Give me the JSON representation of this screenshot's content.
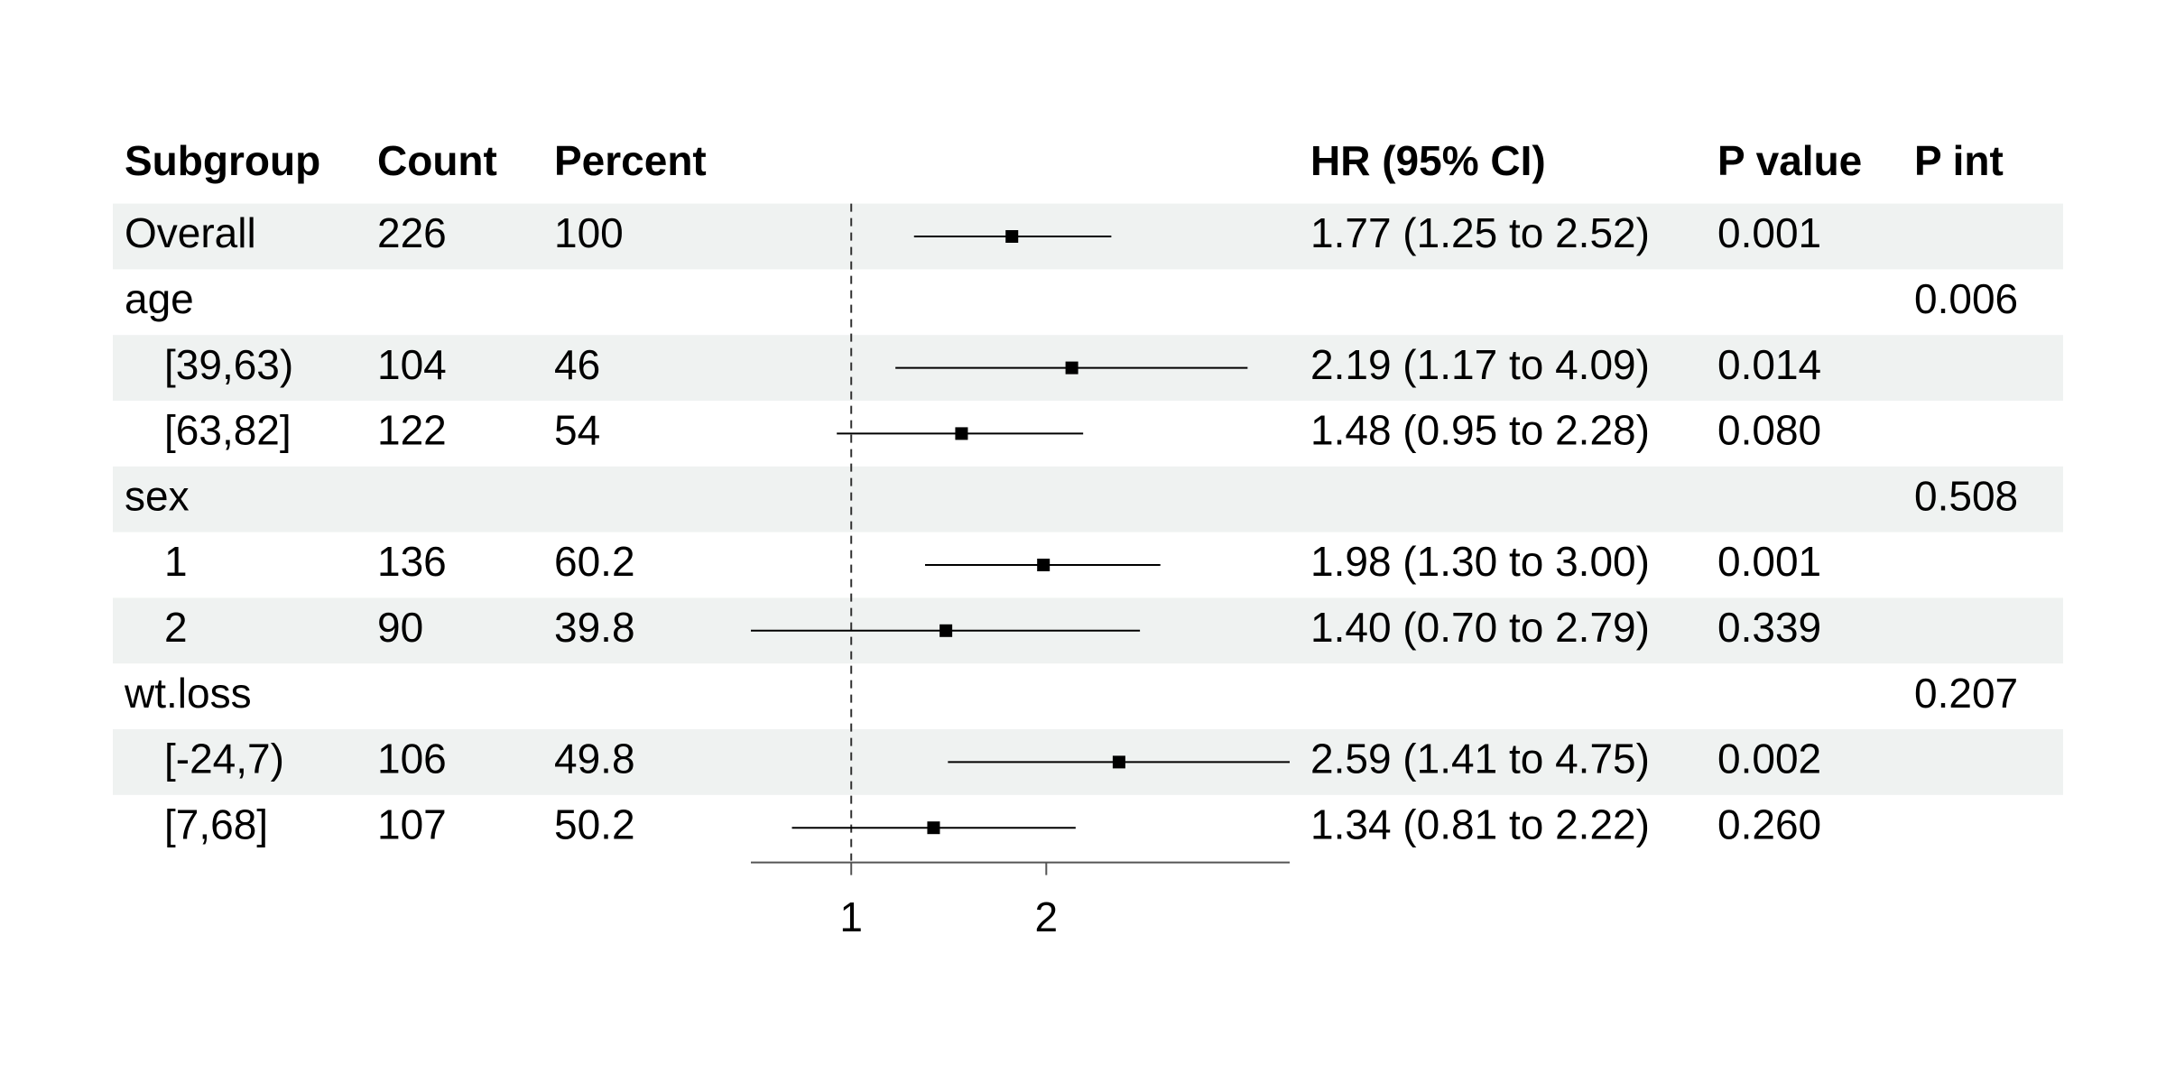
{
  "chart_data": {
    "type": "forest",
    "columns": [
      "Subgroup",
      "Count",
      "Percent",
      "HR (95% CI)",
      "P value",
      "P int"
    ],
    "rows": [
      {
        "subgroup": "Overall",
        "count": 226,
        "percent": 100,
        "hr": 1.77,
        "lower": 1.25,
        "upper": 2.52,
        "ci_label": "1.77 (1.25 to 2.52)",
        "p_value": "0.001"
      },
      {
        "subgroup": "age",
        "p_int": "0.006"
      },
      {
        "subgroup": "[39,63)",
        "count": 104,
        "percent": 46,
        "hr": 2.19,
        "lower": 1.17,
        "upper": 4.09,
        "ci_label": "2.19 (1.17 to 4.09)",
        "p_value": "0.014"
      },
      {
        "subgroup": "[63,82]",
        "count": 122,
        "percent": 54,
        "hr": 1.48,
        "lower": 0.95,
        "upper": 2.28,
        "ci_label": "1.48 (0.95 to 2.28)",
        "p_value": "0.080"
      },
      {
        "subgroup": "sex",
        "p_int": "0.508"
      },
      {
        "subgroup": "1",
        "count": 136,
        "percent": 60.2,
        "hr": 1.98,
        "lower": 1.3,
        "upper": 3.0,
        "ci_label": "1.98 (1.30 to 3.00)",
        "p_value": "0.001"
      },
      {
        "subgroup": "2",
        "count": 90,
        "percent": 39.8,
        "hr": 1.4,
        "lower": 0.7,
        "upper": 2.79,
        "ci_label": "1.40 (0.70 to 2.79)",
        "p_value": "0.339"
      },
      {
        "subgroup": "wt.loss",
        "p_int": "0.207"
      },
      {
        "subgroup": "[-24,7)",
        "count": 106,
        "percent": 49.8,
        "hr": 2.59,
        "lower": 1.41,
        "upper": 4.75,
        "ci_label": "2.59 (1.41 to 4.75)",
        "p_value": "0.002"
      },
      {
        "subgroup": "[7,68]",
        "count": 107,
        "percent": 50.2,
        "hr": 1.34,
        "lower": 0.81,
        "upper": 2.22,
        "ci_label": "1.34 (0.81 to 2.22)",
        "p_value": "0.260"
      }
    ],
    "xlim": [
      0.7,
      4.75
    ],
    "xticks": [
      1,
      2
    ],
    "log_scale": true,
    "reference": 1,
    "stripe_color": "#eff2f1",
    "color": "#000000"
  }
}
